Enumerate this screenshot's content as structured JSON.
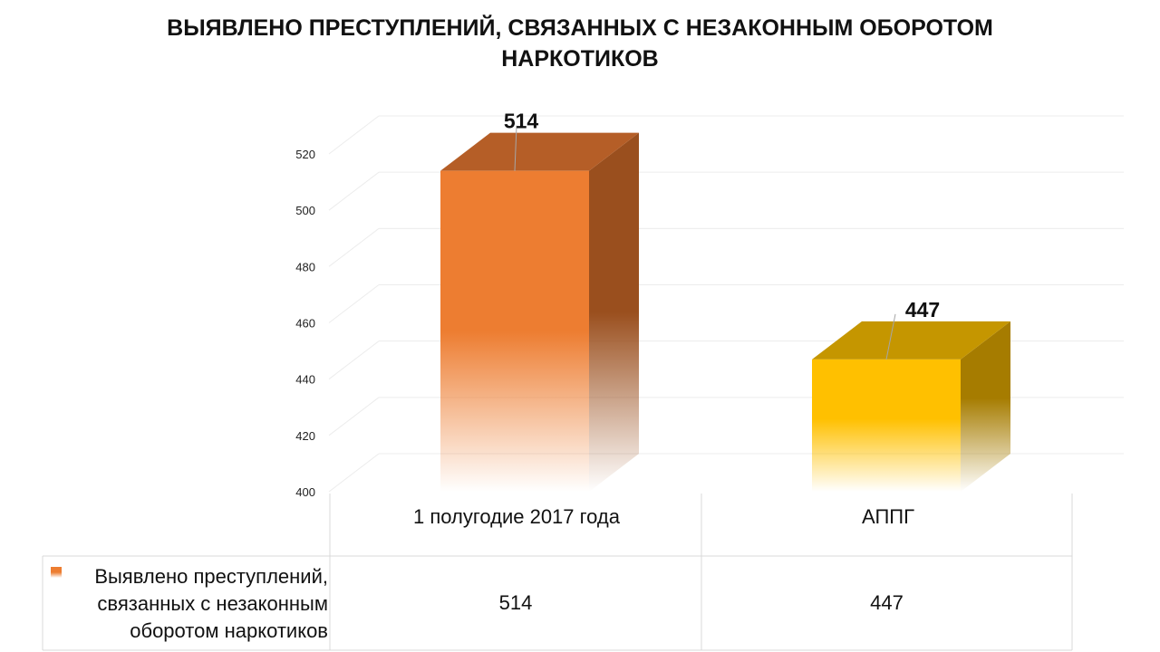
{
  "chart_data": {
    "type": "bar",
    "title": "ВЫЯВЛЕНО ПРЕСТУПЛЕНИЙ, СВЯЗАННЫХ С НЕЗАКОННЫМ ОБОРОТОМ НАРКОТИКОВ",
    "categories": [
      "1 полугодие 2017 года",
      "АППГ"
    ],
    "series": [
      {
        "name": "Выявлено преступлений, связанных с незаконным оборотом наркотиков",
        "values": [
          514,
          447
        ]
      }
    ],
    "data_labels": [
      "514",
      "447"
    ],
    "ylim": [
      400,
      520
    ],
    "yticks": [
      "400",
      "420",
      "440",
      "460",
      "480",
      "500",
      "520"
    ],
    "grid": true,
    "three_d": true,
    "data_table": true,
    "colors": [
      "#ED7D31",
      "#FFC000"
    ]
  }
}
